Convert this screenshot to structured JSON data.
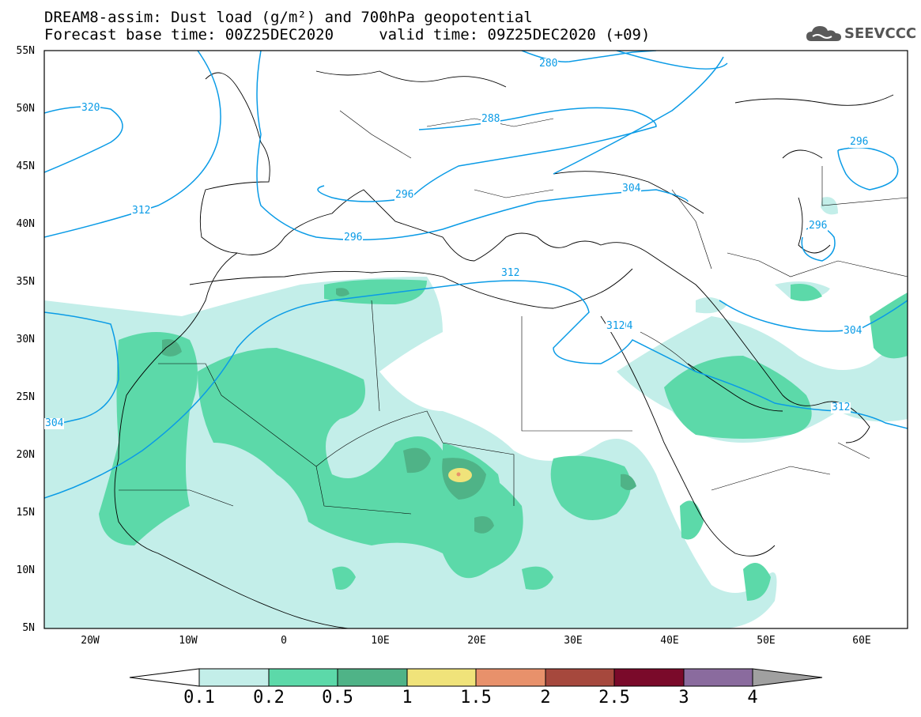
{
  "title": {
    "line1": "DREAM8-assim: Dust load (g/m²) and 700hPa geopotential",
    "line2": "Forecast base time: 00Z25DEC2020     valid time: 09Z25DEC2020 (+09)"
  },
  "logo": {
    "text": "SEEVCCC",
    "icon": "cloud-icon"
  },
  "map": {
    "lat_labels": [
      "55N",
      "50N",
      "45N",
      "40N",
      "35N",
      "30N",
      "25N",
      "20N",
      "15N",
      "10N",
      "5N"
    ],
    "lon_labels": [
      "20W",
      "10W",
      "0",
      "10E",
      "20E",
      "30E",
      "40E",
      "50E",
      "60E"
    ],
    "contour_labels": [
      "280",
      "288",
      "296",
      "304",
      "312",
      "320",
      "312",
      "304",
      "296",
      "304",
      "296",
      "312",
      "312",
      "304",
      "296"
    ],
    "colors": {
      "c01": "#c3eee9",
      "c02": "#5cd9a9",
      "c05": "#4fb387",
      "c1": "#f0e37a",
      "c15": "#e8916b",
      "c2": "#a6483d",
      "c25": "#7a0a2a",
      "c3": "#8a6b9e",
      "c4": "#a0a0a0",
      "contour": "#0a9be6"
    }
  },
  "colorbar": {
    "labels": [
      "0.1",
      "0.2",
      "0.5",
      "1",
      "1.5",
      "2",
      "2.5",
      "3",
      "4"
    ]
  }
}
